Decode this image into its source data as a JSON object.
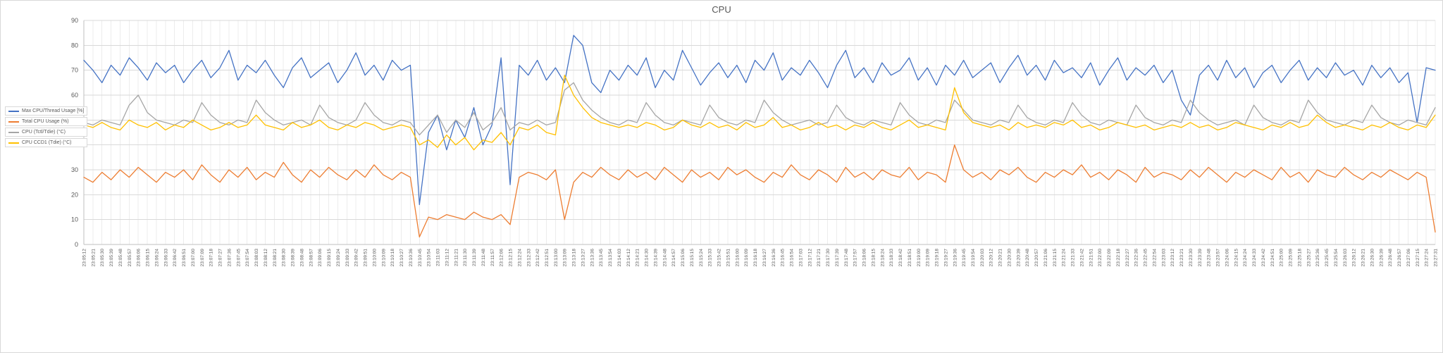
{
  "chart_data": {
    "type": "line",
    "title": "CPU",
    "ylim": [
      0,
      90
    ],
    "y_ticks": [
      0,
      10,
      20,
      30,
      40,
      50,
      60,
      70,
      80,
      90
    ],
    "grid": true,
    "legend_position": "left",
    "x_labels": [
      "23:05:12",
      "23:05:21",
      "23:05:30",
      "23:05:39",
      "23:05:48",
      "23:05:57",
      "23:06:06",
      "23:06:15",
      "23:06:24",
      "23:06:33",
      "23:06:42",
      "23:06:51",
      "23:07:00",
      "23:07:09",
      "23:07:18",
      "23:07:27",
      "23:07:36",
      "23:07:45",
      "23:07:54",
      "23:08:03",
      "23:08:12",
      "23:08:21",
      "23:08:30",
      "23:08:39",
      "23:08:48",
      "23:08:57",
      "23:09:06",
      "23:09:15",
      "23:09:24",
      "23:09:33",
      "23:09:42",
      "23:09:51",
      "23:10:00",
      "23:10:09",
      "23:10:18",
      "23:10:27",
      "23:10:36",
      "23:10:45",
      "23:10:54",
      "23:11:03",
      "23:11:12",
      "23:11:21",
      "23:11:30",
      "23:11:39",
      "23:11:48",
      "23:11:57",
      "23:12:06",
      "23:12:15",
      "23:12:24",
      "23:12:33",
      "23:12:42",
      "23:12:51",
      "23:13:00",
      "23:13:09",
      "23:13:18",
      "23:13:27",
      "23:13:36",
      "23:13:45",
      "23:13:54",
      "23:14:03",
      "23:14:12",
      "23:14:21",
      "23:14:30",
      "23:14:39",
      "23:14:48",
      "23:14:57",
      "23:15:06",
      "23:15:15",
      "23:15:24",
      "23:15:33",
      "23:15:42",
      "23:15:51",
      "23:16:00",
      "23:16:09",
      "23:16:18",
      "23:16:27",
      "23:16:36",
      "23:16:45",
      "23:16:54",
      "23:17:03",
      "23:17:12",
      "23:17:21",
      "23:17:30",
      "23:17:39",
      "23:17:48",
      "23:17:57",
      "23:18:06",
      "23:18:15",
      "23:18:24",
      "23:18:33",
      "23:18:42",
      "23:18:51",
      "23:19:00",
      "23:19:09",
      "23:19:18",
      "23:19:27",
      "23:19:36",
      "23:19:45",
      "23:19:54",
      "23:20:03",
      "23:20:12",
      "23:20:21",
      "23:20:30",
      "23:20:39",
      "23:20:48",
      "23:20:57",
      "23:21:06",
      "23:21:15",
      "23:21:24",
      "23:21:33",
      "23:21:42",
      "23:21:51",
      "23:22:00",
      "23:22:09",
      "23:22:18",
      "23:22:27",
      "23:22:36",
      "23:22:45",
      "23:22:54",
      "23:23:03",
      "23:23:12",
      "23:23:21",
      "23:23:30",
      "23:23:39",
      "23:23:48",
      "23:23:57",
      "23:24:06",
      "23:24:15",
      "23:24:24",
      "23:24:33",
      "23:24:42",
      "23:24:51",
      "23:25:00",
      "23:25:09",
      "23:25:18",
      "23:25:27",
      "23:25:36",
      "23:25:45",
      "23:25:54",
      "23:26:03",
      "23:26:12",
      "23:26:21",
      "23:26:30",
      "23:26:39",
      "23:26:48",
      "23:26:57",
      "23:27:06",
      "23:27:15",
      "23:27:24",
      "23:27:31"
    ],
    "series": [
      {
        "name": "Max CPU/Thread Usage [%]",
        "slug": "max-cpu-thread-usage",
        "color": "#4472C4",
        "values": [
          74,
          70,
          65,
          72,
          68,
          75,
          71,
          66,
          73,
          69,
          72,
          65,
          70,
          74,
          67,
          71,
          78,
          66,
          72,
          69,
          74,
          68,
          63,
          71,
          75,
          67,
          70,
          73,
          65,
          70,
          77,
          68,
          72,
          66,
          74,
          70,
          72,
          16,
          45,
          52,
          38,
          50,
          43,
          55,
          40,
          48,
          75,
          24,
          72,
          68,
          74,
          66,
          71,
          65,
          84,
          80,
          65,
          61,
          70,
          66,
          72,
          68,
          75,
          63,
          70,
          66,
          78,
          71,
          64,
          69,
          73,
          67,
          72,
          65,
          74,
          70,
          77,
          66,
          71,
          68,
          74,
          69,
          63,
          72,
          78,
          67,
          71,
          65,
          73,
          68,
          70,
          75,
          66,
          71,
          64,
          72,
          68,
          74,
          67,
          70,
          73,
          65,
          71,
          76,
          68,
          72,
          66,
          74,
          69,
          71,
          67,
          73,
          64,
          70,
          75,
          66,
          71,
          68,
          72,
          65,
          70,
          58,
          52,
          68,
          72,
          66,
          74,
          67,
          71,
          63,
          69,
          72,
          65,
          70,
          74,
          66,
          71,
          67,
          73,
          68,
          70,
          64,
          72,
          67,
          71,
          65,
          69,
          49,
          71,
          70
        ]
      },
      {
        "name": "Total CPU Usage (%)",
        "slug": "total-cpu-usage",
        "color": "#ED7D31",
        "values": [
          27,
          25,
          29,
          26,
          30,
          27,
          31,
          28,
          25,
          29,
          27,
          30,
          26,
          32,
          28,
          25,
          30,
          27,
          31,
          26,
          29,
          27,
          33,
          28,
          25,
          30,
          27,
          31,
          28,
          26,
          30,
          27,
          32,
          28,
          26,
          29,
          27,
          3,
          11,
          10,
          12,
          11,
          10,
          13,
          11,
          10,
          12,
          8,
          27,
          29,
          28,
          26,
          30,
          10,
          25,
          29,
          27,
          31,
          28,
          26,
          30,
          27,
          29,
          26,
          31,
          28,
          25,
          30,
          27,
          29,
          26,
          31,
          28,
          30,
          27,
          25,
          29,
          27,
          32,
          28,
          26,
          30,
          28,
          25,
          31,
          27,
          29,
          26,
          30,
          28,
          27,
          31,
          26,
          29,
          28,
          25,
          40,
          30,
          27,
          29,
          26,
          30,
          28,
          31,
          27,
          25,
          29,
          27,
          30,
          28,
          32,
          27,
          29,
          26,
          30,
          28,
          25,
          31,
          27,
          29,
          28,
          26,
          30,
          27,
          31,
          28,
          25,
          29,
          27,
          30,
          28,
          26,
          31,
          27,
          29,
          25,
          30,
          28,
          27,
          31,
          28,
          26,
          29,
          27,
          30,
          28,
          26,
          29,
          27,
          5
        ]
      },
      {
        "name": "CPU (Tctl/Tdie) (°C)",
        "slug": "cpu-tctl-tdie",
        "color": "#A5A5A5",
        "values": [
          49,
          48,
          50,
          49,
          48,
          56,
          60,
          53,
          50,
          49,
          48,
          50,
          49,
          57,
          52,
          49,
          48,
          50,
          49,
          58,
          53,
          50,
          48,
          49,
          50,
          48,
          56,
          51,
          49,
          48,
          50,
          57,
          52,
          49,
          48,
          50,
          49,
          44,
          48,
          52,
          45,
          50,
          47,
          53,
          46,
          49,
          55,
          46,
          49,
          48,
          50,
          48,
          49,
          62,
          65,
          58,
          54,
          51,
          49,
          48,
          50,
          49,
          57,
          52,
          49,
          48,
          50,
          49,
          48,
          56,
          51,
          49,
          48,
          50,
          49,
          58,
          53,
          50,
          48,
          49,
          50,
          48,
          49,
          56,
          51,
          49,
          48,
          50,
          49,
          48,
          57,
          52,
          49,
          48,
          50,
          49,
          58,
          54,
          50,
          49,
          48,
          50,
          49,
          56,
          51,
          49,
          48,
          50,
          49,
          57,
          52,
          49,
          48,
          50,
          49,
          48,
          56,
          51,
          49,
          48,
          50,
          49,
          58,
          53,
          50,
          48,
          49,
          50,
          48,
          56,
          51,
          49,
          48,
          50,
          49,
          58,
          53,
          50,
          49,
          48,
          50,
          49,
          56,
          51,
          49,
          48,
          50,
          49,
          48,
          55
        ]
      },
      {
        "name": "CPU CCD1 (Tdie) (°C)",
        "slug": "cpu-ccd1-tdie",
        "color": "#FFC000",
        "values": [
          48,
          47,
          49,
          47,
          46,
          50,
          48,
          47,
          49,
          46,
          48,
          47,
          50,
          48,
          46,
          47,
          49,
          47,
          48,
          52,
          48,
          47,
          46,
          49,
          47,
          48,
          50,
          47,
          46,
          48,
          47,
          49,
          48,
          46,
          47,
          48,
          47,
          40,
          42,
          39,
          44,
          40,
          43,
          38,
          42,
          41,
          45,
          40,
          47,
          46,
          48,
          45,
          44,
          68,
          60,
          55,
          51,
          49,
          48,
          47,
          48,
          47,
          49,
          48,
          46,
          47,
          50,
          48,
          47,
          49,
          47,
          48,
          46,
          49,
          47,
          48,
          51,
          47,
          48,
          46,
          47,
          49,
          47,
          48,
          46,
          48,
          47,
          49,
          47,
          46,
          48,
          50,
          47,
          48,
          47,
          46,
          63,
          53,
          49,
          48,
          47,
          48,
          46,
          49,
          47,
          48,
          47,
          49,
          48,
          50,
          47,
          48,
          46,
          47,
          49,
          48,
          47,
          48,
          46,
          47,
          48,
          47,
          49,
          47,
          48,
          46,
          47,
          49,
          48,
          47,
          46,
          48,
          47,
          49,
          47,
          48,
          52,
          49,
          47,
          48,
          47,
          46,
          48,
          47,
          49,
          47,
          46,
          48,
          47,
          52
        ]
      }
    ]
  }
}
